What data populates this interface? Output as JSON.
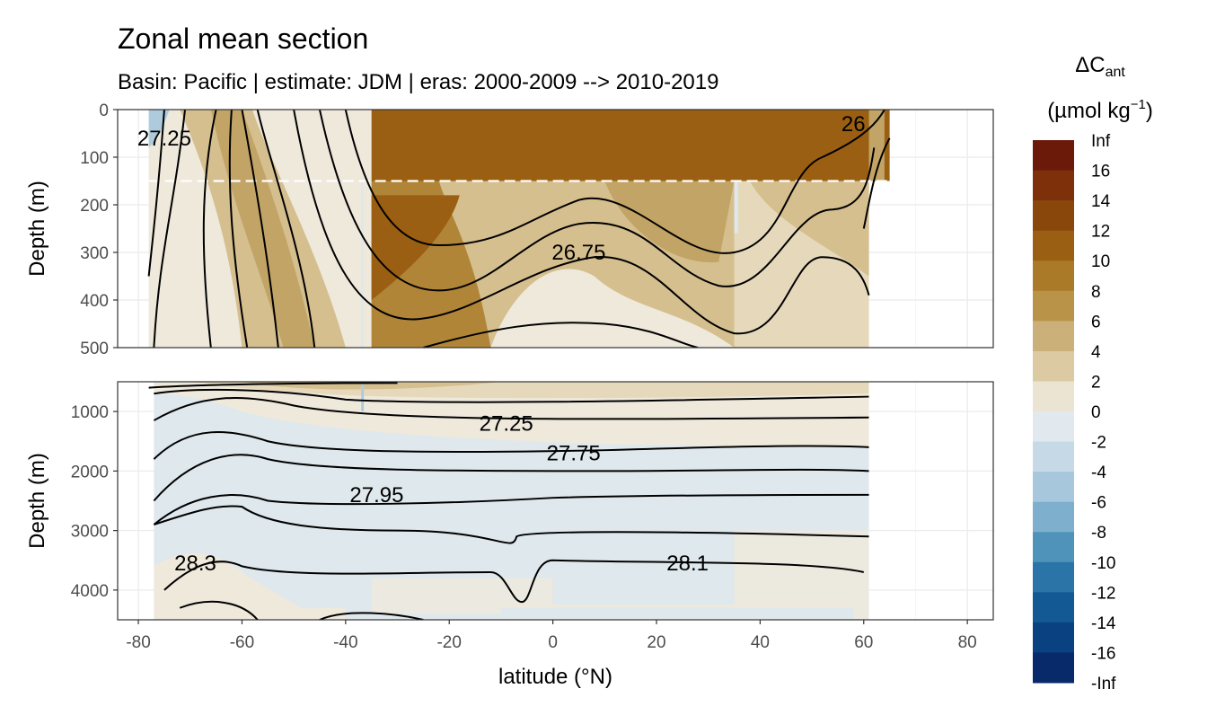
{
  "colors": {
    "pos_10_plus": "#9a5f12",
    "pos_8_10": "#b08538",
    "pos_6_8": "#c2a466",
    "pos_4_6": "#d5bf8f",
    "pos_2_4": "#e6d9bb",
    "pos_0_2": "#efe9dc",
    "neg_0": "#dfe8ec",
    "neg_2": "#aecbdd",
    "panel_border": "#333333",
    "grid": "#ebebeb"
  },
  "chart_data": {
    "type": "heatmap",
    "title": "Zonal mean section",
    "subtitle": "Basin: Pacific | estimate: JDM  | eras: 2000-2009 --> 2010-2019",
    "xlabel": "latitude (°N)",
    "x_ticks": [
      -80,
      -60,
      -40,
      -20,
      0,
      20,
      40,
      60,
      80
    ],
    "xlim": [
      -84,
      85
    ],
    "panels": [
      {
        "name": "upper",
        "ylabel": "Depth (m)",
        "ylim": [
          500,
          0
        ],
        "y_ticks": [
          0,
          100,
          200,
          300,
          400,
          500
        ],
        "dashed_line_depth": 150,
        "contour_labels": [
          {
            "text": "27.25",
            "lat": -75,
            "depth": 60
          },
          {
            "text": "26",
            "lat": 58,
            "depth": 30
          },
          {
            "text": "26.75",
            "lat": 5,
            "depth": 300
          }
        ]
      },
      {
        "name": "lower",
        "ylabel": "Depth (m)",
        "ylim": [
          4500,
          500
        ],
        "y_ticks": [
          1000,
          2000,
          3000,
          4000
        ],
        "contour_labels": [
          {
            "text": "27.25",
            "lat": -9,
            "depth": 1200
          },
          {
            "text": "27.75",
            "lat": 4,
            "depth": 1700
          },
          {
            "text": "27.95",
            "lat": -34,
            "depth": 2400
          },
          {
            "text": "28.3",
            "lat": -69,
            "depth": 3550
          },
          {
            "text": "28.1",
            "lat": 26,
            "depth": 3550
          }
        ]
      }
    ],
    "legend": {
      "title_line1": "ΔC",
      "title_sub": "ant",
      "title_line2_pre": "(µmol kg",
      "title_line2_sup": "−1",
      "title_line2_post": ")",
      "breaks": [
        "Inf",
        "16",
        "14",
        "12",
        "10",
        "8",
        "6",
        "4",
        "2",
        "0",
        "-2",
        "-4",
        "-6",
        "-8",
        "-10",
        "-12",
        "-14",
        "-16",
        "-Inf"
      ],
      "colors": [
        "#6b1a0a",
        "#7d300a",
        "#8a470c",
        "#9a5f12",
        "#aa7a28",
        "#b99448",
        "#cbb07a",
        "#dccaa2",
        "#ece4d2",
        "#e1e9ee",
        "#c5dae6",
        "#a7c8dc",
        "#7eb0cd",
        "#4f93bb",
        "#2a74a7",
        "#135a94",
        "#0a4180",
        "#082a6a",
        "#05154f"
      ]
    }
  }
}
